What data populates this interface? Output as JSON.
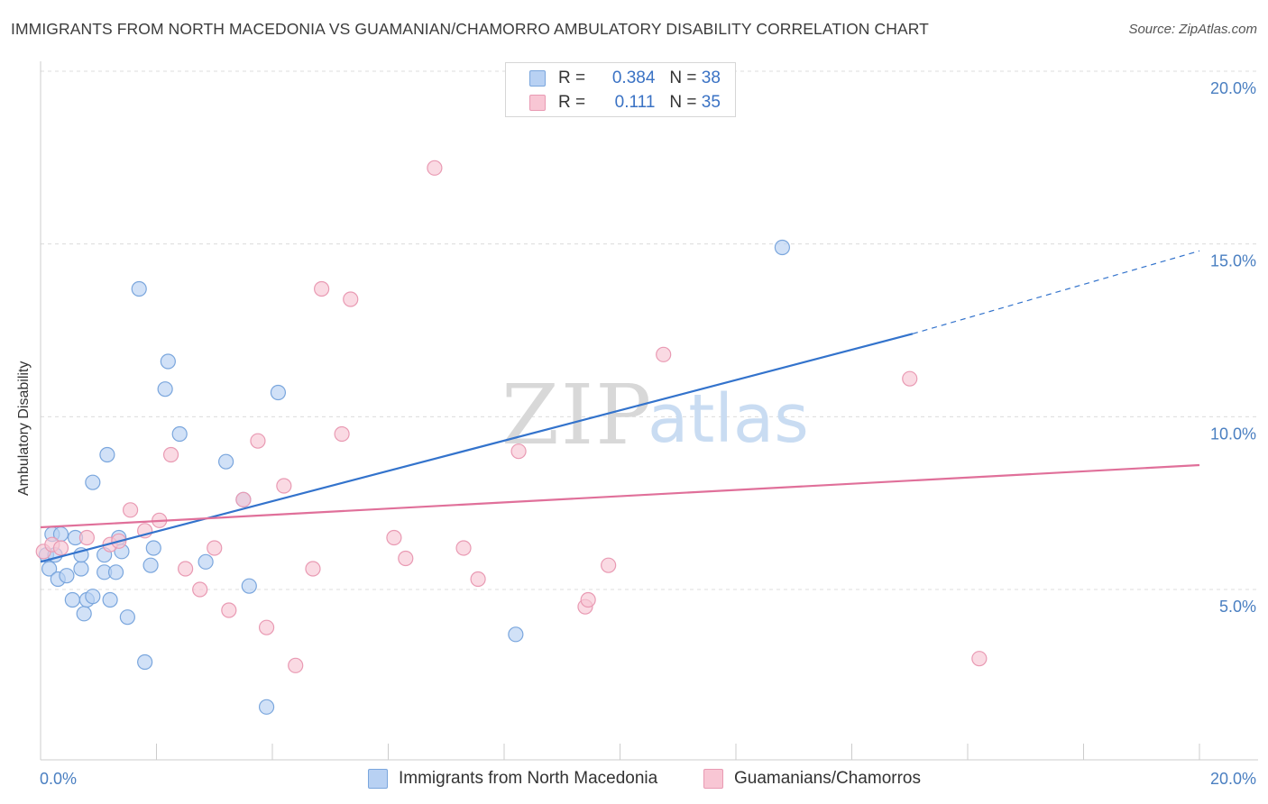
{
  "title": "IMMIGRANTS FROM NORTH MACEDONIA VS GUAMANIAN/CHAMORRO AMBULATORY DISABILITY CORRELATION CHART",
  "source": "Source: ZipAtlas.com",
  "watermark": {
    "zip": "ZIP",
    "atlas": "atlas"
  },
  "legend": {
    "rows": [
      {
        "r_label": "R =",
        "r_value": "0.384",
        "n_label": "N =",
        "n_value": "38"
      },
      {
        "r_label": "R =",
        "r_value": "0.111",
        "n_label": "N =",
        "n_value": "35"
      }
    ]
  },
  "bottom_legend": [
    "Immigrants from North Macedonia",
    "Guamanians/Chamorros"
  ],
  "colors": {
    "blue_fill": "#b8d1f3",
    "blue_stroke": "#7aa6dd",
    "blue_line": "#3373cc",
    "pink_fill": "#f8c6d4",
    "pink_stroke": "#e99ab3",
    "pink_line": "#e0709a",
    "tick_text": "#4a7fc1",
    "grid": "#dcdcdc"
  },
  "chart_data": {
    "type": "scatter",
    "title": "IMMIGRANTS FROM NORTH MACEDONIA VS GUAMANIAN/CHAMORRO AMBULATORY DISABILITY CORRELATION CHART",
    "xlabel": "",
    "ylabel": "Ambulatory Disability",
    "xlim": [
      0,
      20
    ],
    "ylim": [
      0.9,
      20.5
    ],
    "x_tick_labels": [
      "0.0%",
      "20.0%"
    ],
    "y_ticks": [
      5,
      10,
      15,
      20
    ],
    "y_tick_labels": [
      "5.0%",
      "10.0%",
      "15.0%",
      "20.0%"
    ],
    "grid": true,
    "legend_position": "top-center",
    "series": [
      {
        "name": "Immigrants from North Macedonia",
        "color": "#b8d1f3",
        "points": [
          [
            0.1,
            6.0
          ],
          [
            0.15,
            5.6
          ],
          [
            0.2,
            6.6
          ],
          [
            0.25,
            6.0
          ],
          [
            0.3,
            5.3
          ],
          [
            0.35,
            6.6
          ],
          [
            0.45,
            5.4
          ],
          [
            0.55,
            4.7
          ],
          [
            0.6,
            6.5
          ],
          [
            0.7,
            5.6
          ],
          [
            0.7,
            6.0
          ],
          [
            0.75,
            4.3
          ],
          [
            0.8,
            4.7
          ],
          [
            0.9,
            4.8
          ],
          [
            1.1,
            5.5
          ],
          [
            1.1,
            6.0
          ],
          [
            1.2,
            4.7
          ],
          [
            1.3,
            5.5
          ],
          [
            1.35,
            6.5
          ],
          [
            1.4,
            6.1
          ],
          [
            1.5,
            4.2
          ],
          [
            1.7,
            13.7
          ],
          [
            1.8,
            2.9
          ],
          [
            1.9,
            5.7
          ],
          [
            1.95,
            6.2
          ],
          [
            2.15,
            10.8
          ],
          [
            2.2,
            11.6
          ],
          [
            2.4,
            9.5
          ],
          [
            2.85,
            5.8
          ],
          [
            3.2,
            8.7
          ],
          [
            3.5,
            7.6
          ],
          [
            3.6,
            5.1
          ],
          [
            3.9,
            1.6
          ],
          [
            4.1,
            10.7
          ],
          [
            0.9,
            8.1
          ],
          [
            1.15,
            8.9
          ],
          [
            8.2,
            3.7
          ],
          [
            12.8,
            14.9
          ]
        ],
        "trend": {
          "x": [
            0,
            15.05
          ],
          "y": [
            5.8,
            12.4
          ],
          "dashed_to": [
            20,
            14.8
          ]
        }
      },
      {
        "name": "Guamanians/Chamorros",
        "color": "#f8c6d4",
        "points": [
          [
            0.05,
            6.1
          ],
          [
            0.2,
            6.3
          ],
          [
            0.35,
            6.2
          ],
          [
            0.8,
            6.5
          ],
          [
            1.2,
            6.3
          ],
          [
            1.35,
            6.4
          ],
          [
            1.55,
            7.3
          ],
          [
            1.8,
            6.7
          ],
          [
            2.05,
            7.0
          ],
          [
            2.25,
            8.9
          ],
          [
            2.5,
            5.6
          ],
          [
            2.75,
            5.0
          ],
          [
            3.0,
            6.2
          ],
          [
            3.25,
            4.4
          ],
          [
            3.5,
            7.6
          ],
          [
            3.75,
            9.3
          ],
          [
            3.9,
            3.9
          ],
          [
            4.2,
            8.0
          ],
          [
            4.4,
            2.8
          ],
          [
            4.7,
            5.6
          ],
          [
            4.85,
            13.7
          ],
          [
            5.2,
            9.5
          ],
          [
            5.35,
            13.4
          ],
          [
            6.1,
            6.5
          ],
          [
            6.3,
            5.9
          ],
          [
            6.8,
            17.2
          ],
          [
            7.3,
            6.2
          ],
          [
            7.55,
            5.3
          ],
          [
            8.25,
            9.0
          ],
          [
            9.4,
            4.5
          ],
          [
            9.45,
            4.7
          ],
          [
            9.8,
            5.7
          ],
          [
            10.75,
            11.8
          ],
          [
            15.0,
            11.1
          ],
          [
            16.2,
            3.0
          ]
        ],
        "trend": {
          "x": [
            0,
            20
          ],
          "y": [
            6.8,
            8.6
          ]
        }
      }
    ]
  }
}
